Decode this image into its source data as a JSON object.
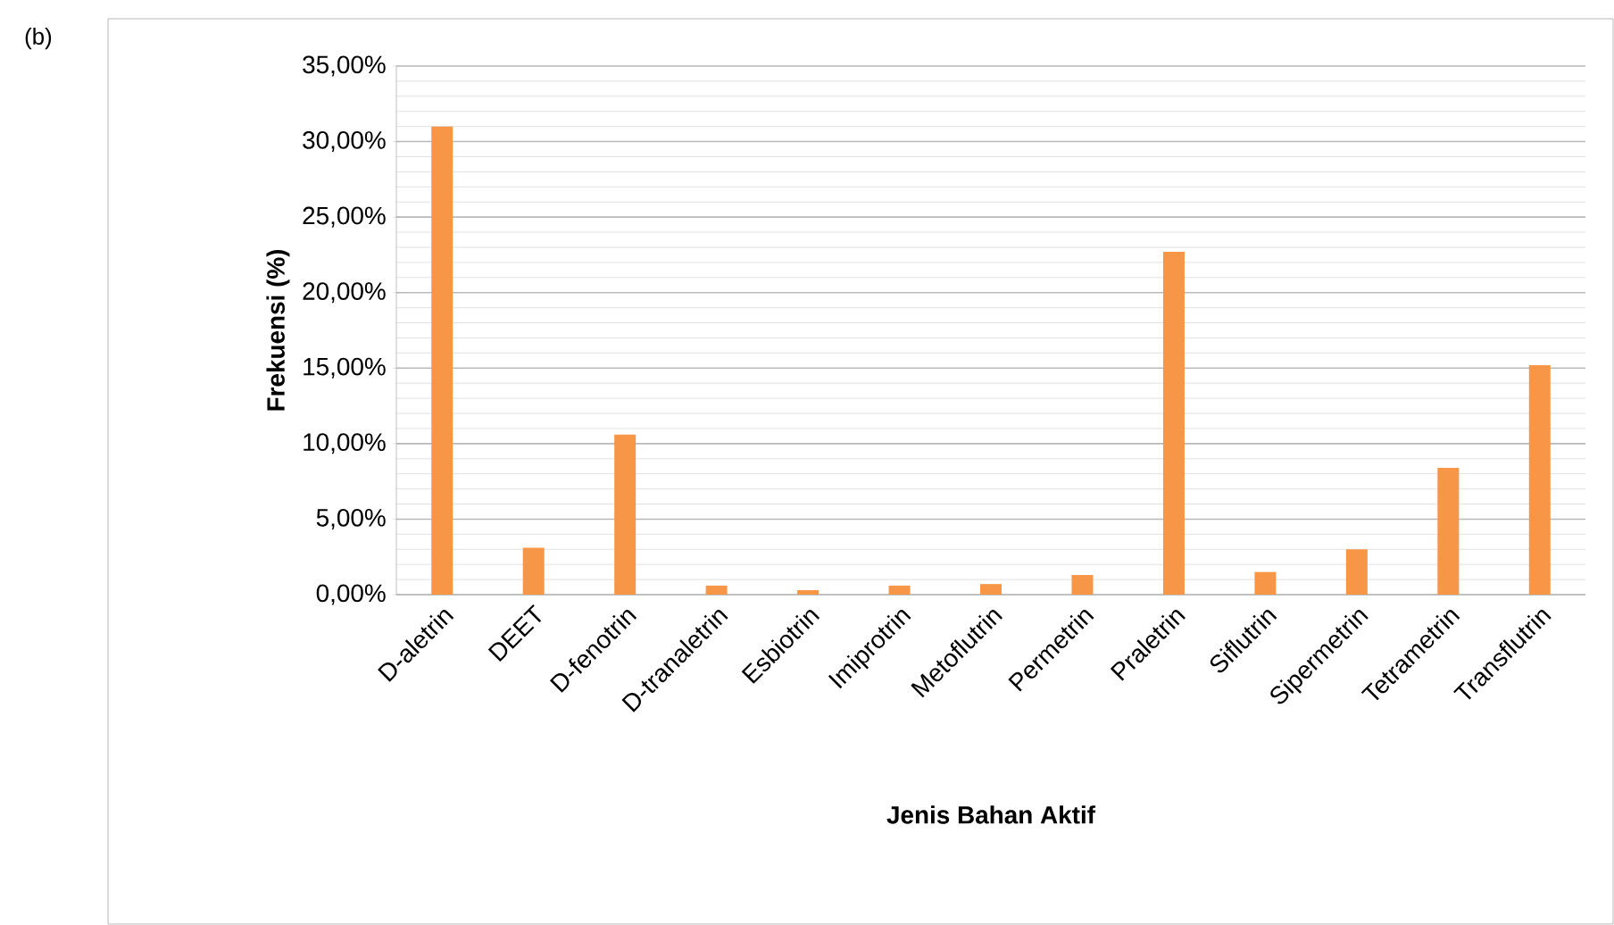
{
  "chart_data": {
    "type": "bar",
    "xlabel": "Jenis Bahan Aktif",
    "ylabel": "Frekuensi (%)",
    "annotations": [
      "(b)"
    ],
    "categories": [
      "D-aletrin",
      "DEET",
      "D-fenotrin",
      "D-tranaletrin",
      "Esbiotrin",
      "Imiprotrin",
      "Metoflutrin",
      "Permetrin",
      "Praletrin",
      "Siflutrin",
      "Sipermetrin",
      "Tetrametrin",
      "Transflutrin"
    ],
    "values": [
      31.0,
      3.1,
      10.6,
      0.6,
      0.3,
      0.6,
      0.7,
      1.3,
      22.7,
      1.5,
      3.0,
      8.4,
      15.2
    ],
    "color": "#f79646",
    "ylim": [
      0,
      35
    ],
    "yticks": [
      {
        "value": 0,
        "label": "0,00%"
      },
      {
        "value": 5,
        "label": "5,00%"
      },
      {
        "value": 10,
        "label": "10,00%"
      },
      {
        "value": 15,
        "label": "15,00%"
      },
      {
        "value": 20,
        "label": "20,00%"
      },
      {
        "value": 25,
        "label": "25,00%"
      },
      {
        "value": 30,
        "label": "30,00%"
      },
      {
        "value": 35,
        "label": "35,00%"
      }
    ],
    "grid": "y"
  }
}
